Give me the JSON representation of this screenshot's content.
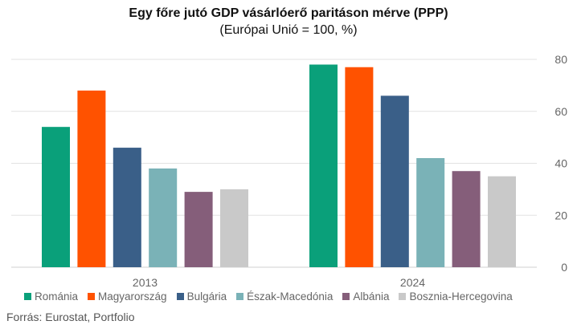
{
  "chart_data": {
    "type": "bar",
    "title": "Egy főre jutó GDP vásárlóerő paritáson mérve (PPP)",
    "subtitle": "(Európai Unió = 100, %)",
    "categories": [
      "2013",
      "2024"
    ],
    "series": [
      {
        "name": "Románia",
        "color": "#0aa07a",
        "values": [
          54,
          78
        ]
      },
      {
        "name": "Magyarország",
        "color": "#ff5200",
        "values": [
          68,
          77
        ]
      },
      {
        "name": "Bulgária",
        "color": "#3a5f88",
        "values": [
          46,
          66
        ]
      },
      {
        "name": "Észak-Macedónia",
        "color": "#7ab2b7",
        "values": [
          38,
          42
        ]
      },
      {
        "name": "Albánia",
        "color": "#855e7a",
        "values": [
          29,
          37
        ]
      },
      {
        "name": "Bosznia-Hercegovina",
        "color": "#c9c9c9",
        "values": [
          30,
          35
        ]
      }
    ],
    "y_ticks": [
      0,
      20,
      40,
      60,
      80
    ],
    "ylim": [
      0,
      80
    ],
    "y_axis_side": "right",
    "grid": true,
    "legend_position": "bottom"
  },
  "footer": {
    "source": "Forrás: Eurostat, Portfolio"
  }
}
